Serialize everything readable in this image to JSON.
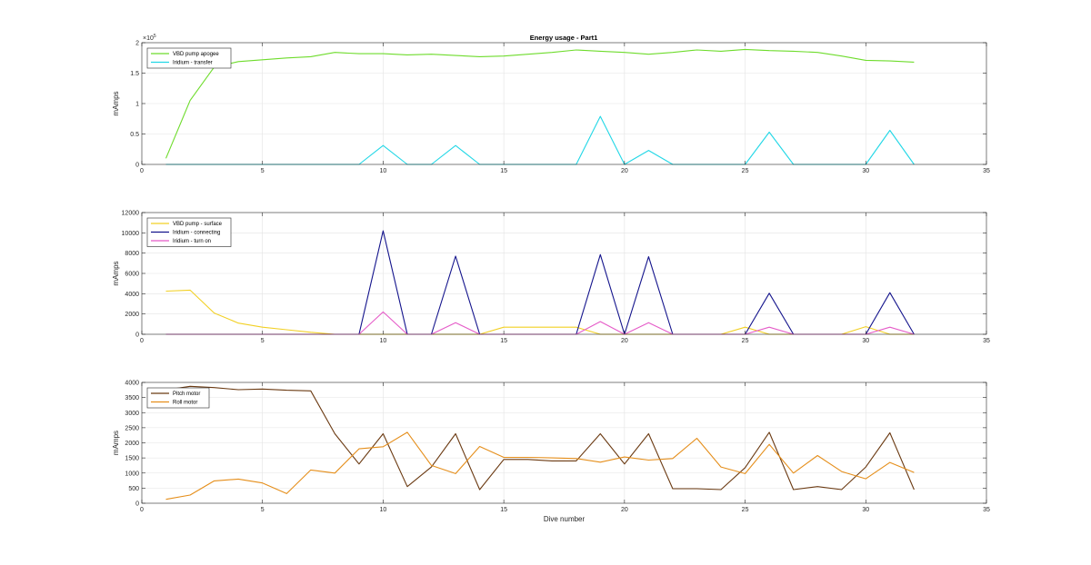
{
  "figure_title": "Energy usage - Part1",
  "x_label": "Dive number",
  "chart_data": [
    {
      "type": "line",
      "title": "Energy usage - Part1",
      "xlabel": "",
      "ylabel": "mAmps",
      "xlim": [
        0,
        35
      ],
      "ylim": [
        0,
        200000
      ],
      "x_ticks": [
        0,
        5,
        10,
        15,
        20,
        25,
        30,
        35
      ],
      "x_tick_labels": [
        "0",
        "5",
        "10",
        "15",
        "20",
        "25",
        "30",
        "35"
      ],
      "y_ticks": [
        0,
        50000,
        100000,
        150000,
        200000
      ],
      "y_tick_labels": [
        "0",
        "0.5",
        "1",
        "1.5",
        "2"
      ],
      "y_exponent_label": "×10",
      "y_exponent_power": "5",
      "grid": true,
      "legend_position": "top-left",
      "series": [
        {
          "name": "VBD pump apogee",
          "color": "#6edc2c",
          "x": [
            1,
            2,
            3,
            4,
            5,
            6,
            7,
            8,
            9,
            10,
            11,
            12,
            13,
            14,
            15,
            16,
            17,
            18,
            19,
            20,
            21,
            22,
            23,
            24,
            25,
            26,
            27,
            28,
            29,
            30,
            31,
            32
          ],
          "y": [
            10000,
            105000,
            160000,
            169000,
            172000,
            175000,
            177000,
            184000,
            182000,
            182000,
            180000,
            181000,
            179000,
            177000,
            178000,
            181000,
            184000,
            188000,
            186000,
            184000,
            181000,
            184000,
            188000,
            186000,
            189000,
            187000,
            186000,
            184000,
            178000,
            171000,
            170000,
            168000
          ]
        },
        {
          "name": "Iridium - transfer",
          "color": "#22d7e6",
          "x": [
            1,
            2,
            3,
            4,
            5,
            6,
            7,
            8,
            9,
            10,
            11,
            12,
            13,
            14,
            15,
            16,
            17,
            18,
            19,
            20,
            21,
            22,
            23,
            24,
            25,
            26,
            27,
            28,
            29,
            30,
            31,
            32
          ],
          "y": [
            0,
            0,
            0,
            0,
            0,
            0,
            0,
            0,
            0,
            31000,
            0,
            0,
            31000,
            0,
            0,
            0,
            0,
            0,
            79000,
            0,
            23000,
            0,
            0,
            0,
            0,
            53000,
            0,
            0,
            0,
            0,
            56000,
            0
          ]
        }
      ]
    },
    {
      "type": "line",
      "title": "",
      "xlabel": "",
      "ylabel": "mAmps",
      "xlim": [
        0,
        35
      ],
      "ylim": [
        0,
        12000
      ],
      "x_ticks": [
        0,
        5,
        10,
        15,
        20,
        25,
        30,
        35
      ],
      "x_tick_labels": [
        "0",
        "5",
        "10",
        "15",
        "20",
        "25",
        "30",
        "35"
      ],
      "y_ticks": [
        0,
        2000,
        4000,
        6000,
        8000,
        10000,
        12000
      ],
      "y_tick_labels": [
        "0",
        "2000",
        "4000",
        "6000",
        "8000",
        "10000",
        "12000"
      ],
      "grid": true,
      "legend_position": "top-left",
      "series": [
        {
          "name": "VBD pump - surface",
          "color": "#f2d024",
          "x": [
            1,
            2,
            3,
            4,
            5,
            6,
            7,
            8,
            9,
            10,
            11,
            12,
            13,
            14,
            15,
            16,
            17,
            18,
            19,
            20,
            21,
            22,
            23,
            24,
            25,
            26,
            27,
            28,
            29,
            30,
            31,
            32
          ],
          "y": [
            4250,
            4350,
            2100,
            1100,
            700,
            450,
            200,
            0,
            0,
            0,
            0,
            0,
            0,
            0,
            700,
            700,
            700,
            700,
            0,
            0,
            0,
            0,
            0,
            0,
            700,
            0,
            0,
            0,
            0,
            750,
            0,
            0
          ]
        },
        {
          "name": "Iridium - connecting",
          "color": "#14148c",
          "x": [
            1,
            2,
            3,
            4,
            5,
            6,
            7,
            8,
            9,
            10,
            11,
            12,
            13,
            14,
            15,
            16,
            17,
            18,
            19,
            20,
            21,
            22,
            23,
            24,
            25,
            26,
            27,
            28,
            29,
            30,
            31,
            32
          ],
          "y": [
            0,
            0,
            0,
            0,
            0,
            0,
            0,
            0,
            0,
            10200,
            0,
            0,
            7700,
            0,
            0,
            0,
            0,
            0,
            7850,
            0,
            7650,
            0,
            0,
            0,
            0,
            4050,
            0,
            0,
            0,
            0,
            4100,
            0
          ]
        },
        {
          "name": "Iridium - turn on",
          "color": "#e55bc8",
          "x": [
            1,
            2,
            3,
            4,
            5,
            6,
            7,
            8,
            9,
            10,
            11,
            12,
            13,
            14,
            15,
            16,
            17,
            18,
            19,
            20,
            21,
            22,
            23,
            24,
            25,
            26,
            27,
            28,
            29,
            30,
            31,
            32
          ],
          "y": [
            0,
            0,
            0,
            0,
            0,
            0,
            0,
            0,
            0,
            2200,
            0,
            0,
            1150,
            0,
            0,
            0,
            0,
            0,
            1250,
            0,
            1150,
            0,
            0,
            0,
            0,
            700,
            0,
            0,
            0,
            0,
            700,
            0
          ]
        }
      ]
    },
    {
      "type": "line",
      "title": "",
      "xlabel": "Dive number",
      "ylabel": "mAmps",
      "xlim": [
        0,
        35
      ],
      "ylim": [
        0,
        4000
      ],
      "x_ticks": [
        0,
        5,
        10,
        15,
        20,
        25,
        30,
        35
      ],
      "x_tick_labels": [
        "0",
        "5",
        "10",
        "15",
        "20",
        "25",
        "30",
        "35"
      ],
      "y_ticks": [
        0,
        500,
        1000,
        1500,
        2000,
        2500,
        3000,
        3500,
        4000
      ],
      "y_tick_labels": [
        "0",
        "500",
        "1000",
        "1500",
        "2000",
        "2500",
        "3000",
        "3500",
        "4000"
      ],
      "grid": true,
      "legend_position": "top-left",
      "series": [
        {
          "name": "Pitch motor",
          "color": "#6b3a12",
          "x": [
            1,
            2,
            3,
            4,
            5,
            6,
            7,
            8,
            9,
            10,
            11,
            12,
            13,
            14,
            15,
            16,
            17,
            18,
            19,
            20,
            21,
            22,
            23,
            24,
            25,
            26,
            27,
            28,
            29,
            30,
            31,
            32
          ],
          "y": [
            3750,
            3870,
            3830,
            3760,
            3780,
            3740,
            3720,
            2300,
            1300,
            2300,
            550,
            1200,
            2300,
            450,
            1450,
            1450,
            1400,
            1400,
            2300,
            1300,
            2300,
            480,
            480,
            450,
            1180,
            2350,
            450,
            550,
            450,
            1200,
            2330,
            450
          ]
        },
        {
          "name": "Roll motor",
          "color": "#e58e1a",
          "x": [
            1,
            2,
            3,
            4,
            5,
            6,
            7,
            8,
            9,
            10,
            11,
            12,
            13,
            14,
            15,
            16,
            17,
            18,
            19,
            20,
            21,
            22,
            23,
            24,
            25,
            26,
            27,
            28,
            29,
            30,
            31,
            32
          ],
          "y": [
            130,
            270,
            740,
            800,
            670,
            320,
            1100,
            1000,
            1800,
            1870,
            2350,
            1250,
            980,
            1880,
            1520,
            1520,
            1500,
            1480,
            1360,
            1530,
            1430,
            1480,
            2150,
            1200,
            980,
            1950,
            1000,
            1580,
            1050,
            810,
            1350,
            1020
          ]
        }
      ]
    }
  ]
}
